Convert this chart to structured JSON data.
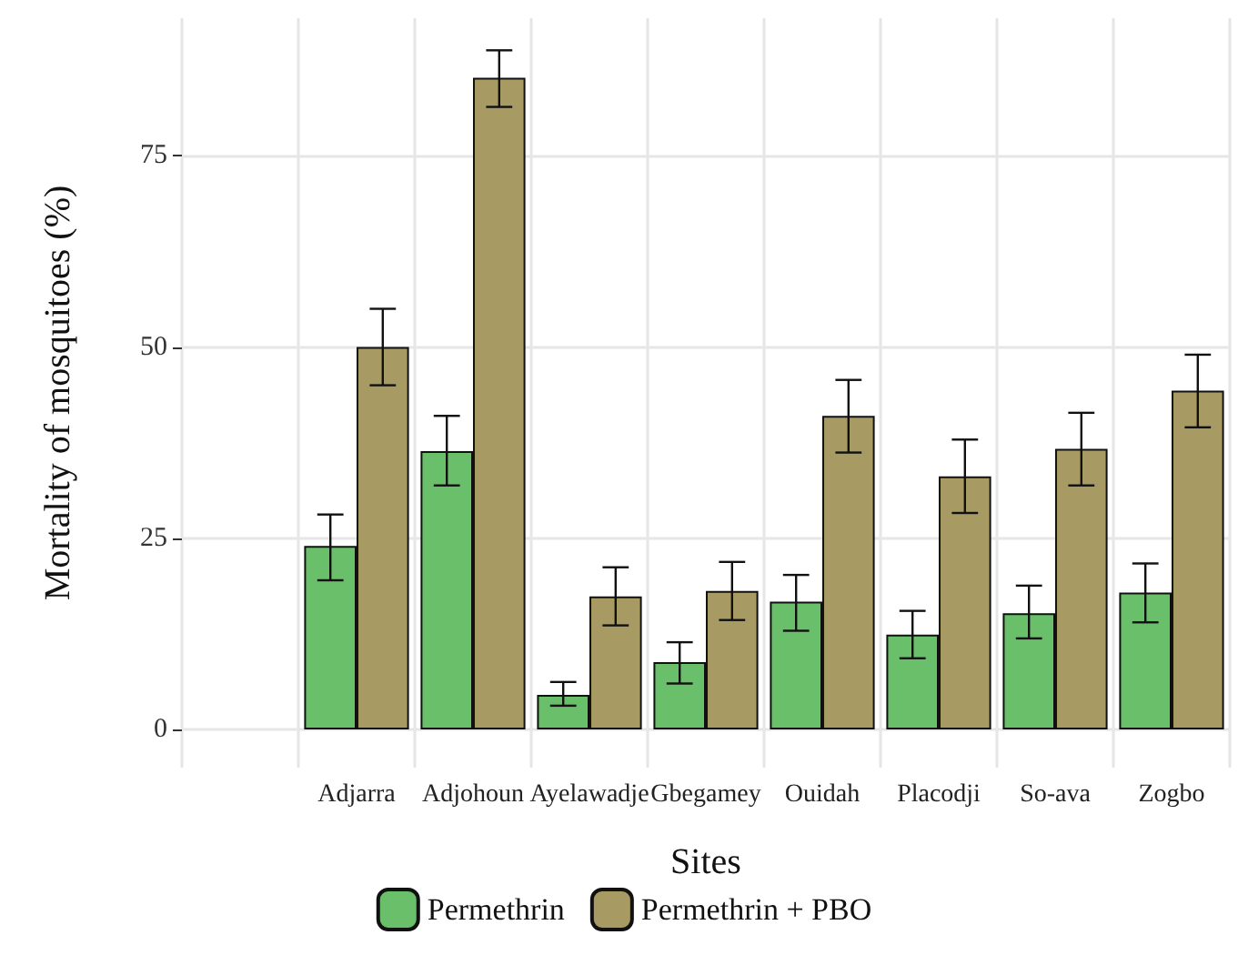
{
  "chart_data": {
    "type": "bar",
    "xlabel": "Sites",
    "ylabel": "Mortality of mosquitoes (%)",
    "categories": [
      null,
      "Adjarra",
      "Adjohoun",
      "Ayelawadje",
      "Gbegamey",
      "Ouidah",
      "Placodji",
      "So-ava",
      "Zogbo"
    ],
    "series": [
      {
        "name": "Permethrin",
        "color": "#6abf6a",
        "values": [
          null,
          24.0,
          36.4,
          4.5,
          8.8,
          16.7,
          12.4,
          15.2,
          17.9
        ],
        "errors": [
          null,
          [
            19.5,
            28.1
          ],
          [
            31.9,
            41.0
          ],
          [
            3.1,
            6.2
          ],
          [
            6.0,
            11.4
          ],
          [
            12.9,
            20.2
          ],
          [
            9.3,
            15.5
          ],
          [
            11.9,
            18.8
          ],
          [
            14.0,
            21.7
          ]
        ]
      },
      {
        "name": "Permethrin + PBO",
        "color": "#a89a63",
        "values": [
          null,
          50.0,
          85.2,
          17.4,
          18.1,
          41.0,
          33.1,
          36.7,
          44.3
        ],
        "errors": [
          null,
          [
            45.0,
            55.0
          ],
          [
            81.4,
            88.8
          ],
          [
            13.6,
            21.2
          ],
          [
            14.3,
            21.9
          ],
          [
            36.2,
            45.7
          ],
          [
            28.3,
            37.9
          ],
          [
            31.9,
            41.4
          ],
          [
            39.5,
            49.0
          ]
        ]
      }
    ],
    "ylim": [
      -5,
      93
    ],
    "yticks": [
      0,
      25,
      50,
      75
    ],
    "grid": true,
    "legend": "bottom"
  }
}
